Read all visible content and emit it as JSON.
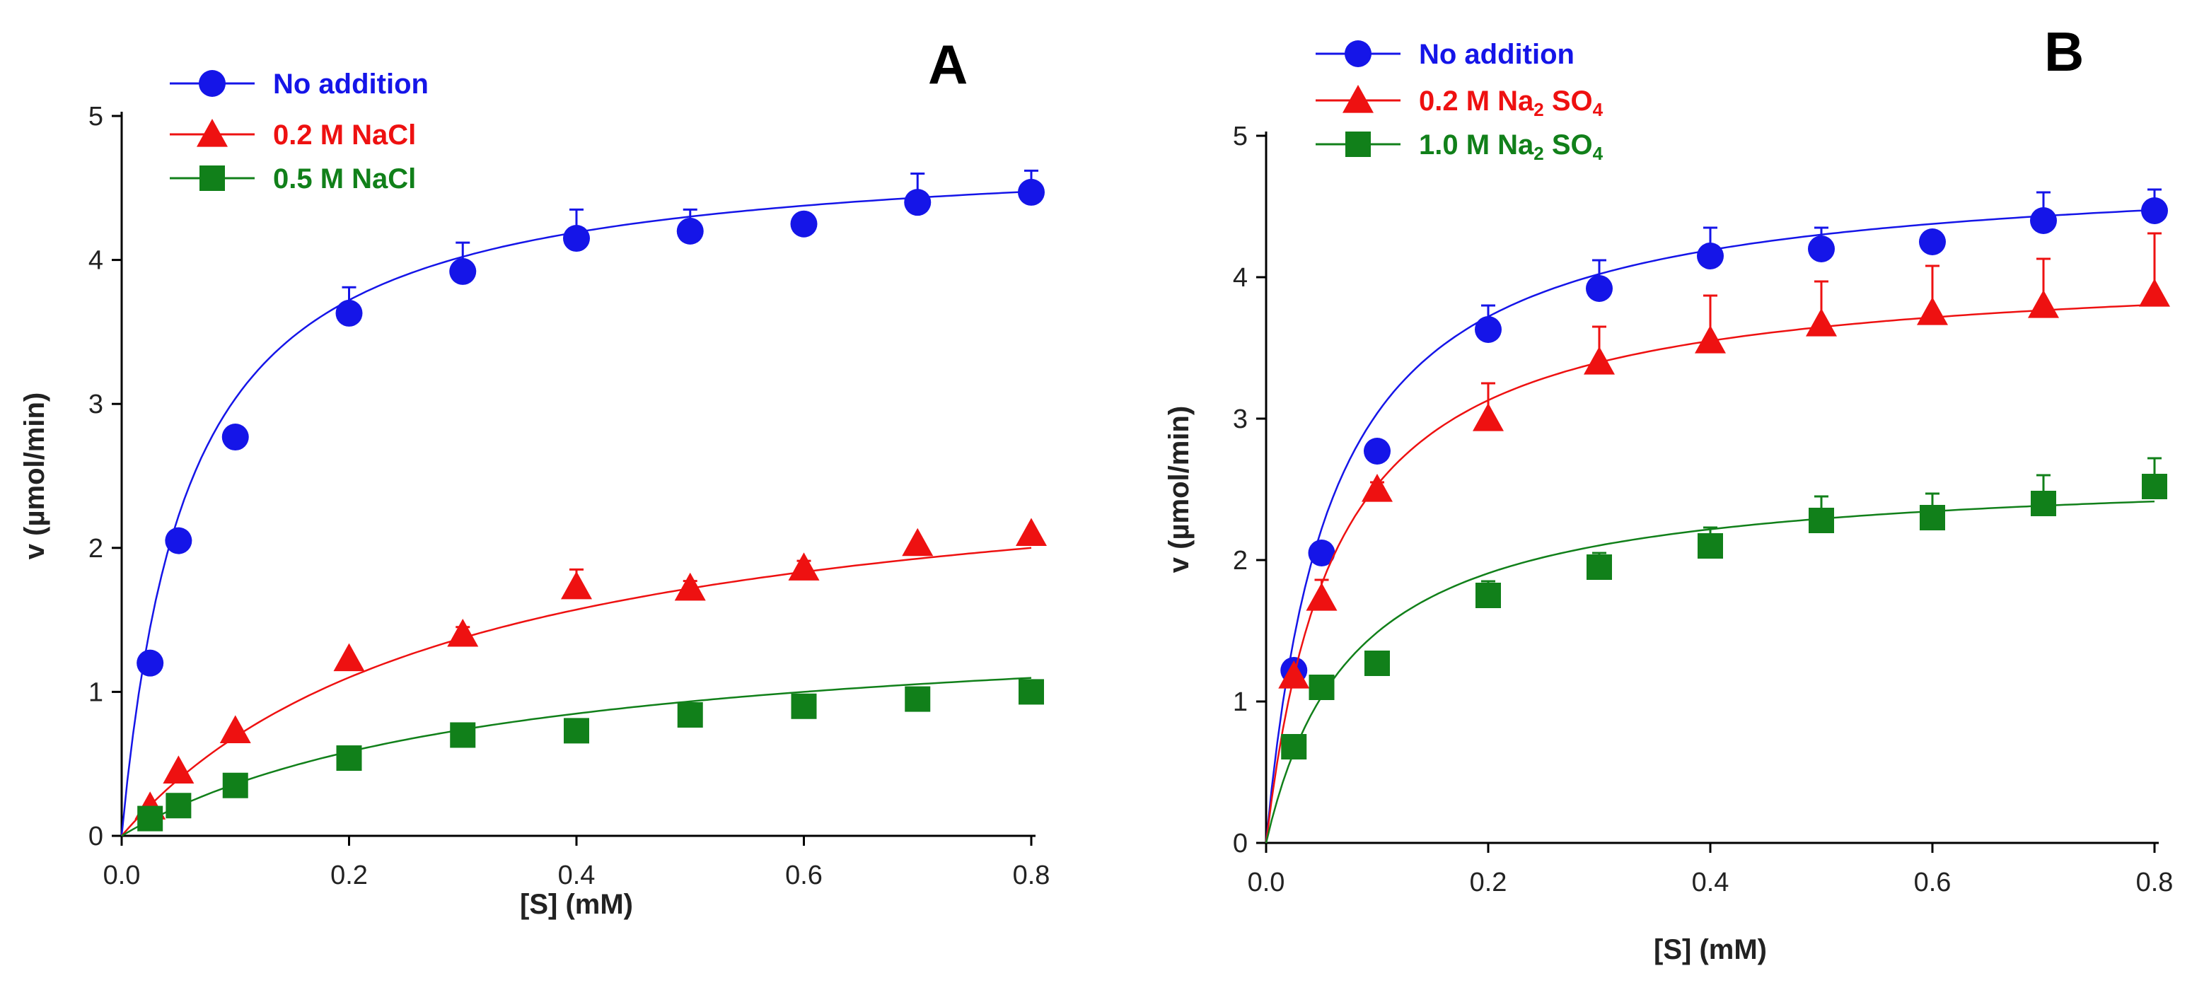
{
  "chart_data": [
    {
      "panel": "A",
      "type": "scatter",
      "xlabel": "[S] (mM)",
      "ylabel": "v (µmol/min)",
      "xlim": [
        0,
        0.8
      ],
      "ylim": [
        0,
        5
      ],
      "xticks": [
        "0.0",
        "0.2",
        "0.4",
        "0.6",
        "0.8"
      ],
      "yticks": [
        "0",
        "1",
        "2",
        "3",
        "4",
        "5"
      ],
      "legend_position": "top-left",
      "series": [
        {
          "name": "No addition",
          "color": "#1515e8",
          "marker": "circle",
          "x": [
            0.025,
            0.05,
            0.1,
            0.2,
            0.3,
            0.4,
            0.5,
            0.6,
            0.7,
            0.8
          ],
          "y": [
            1.2,
            2.05,
            2.77,
            3.63,
            3.92,
            4.15,
            4.2,
            4.25,
            4.4,
            4.47
          ],
          "err": [
            0,
            0,
            0.05,
            0.18,
            0.2,
            0.2,
            0.15,
            0.05,
            0.2,
            0.15
          ],
          "fit": {
            "vmax": 4.8,
            "km": 0.058
          }
        },
        {
          "name": "0.2 M NaCl",
          "color": "#ee1111",
          "marker": "triangle",
          "x": [
            0.025,
            0.05,
            0.1,
            0.2,
            0.3,
            0.4,
            0.5,
            0.6,
            0.7,
            0.8
          ],
          "y": [
            0.2,
            0.45,
            0.73,
            1.23,
            1.4,
            1.73,
            1.72,
            1.86,
            2.03,
            2.1
          ],
          "err": [
            0,
            0,
            0,
            0,
            0.05,
            0.12,
            0.05,
            0.05,
            0,
            0
          ],
          "fit": {
            "vmax": 2.75,
            "km": 0.3
          }
        },
        {
          "name": "0.5 M NaCl",
          "color": "#11801a",
          "marker": "square",
          "x": [
            0.025,
            0.05,
            0.1,
            0.2,
            0.3,
            0.4,
            0.5,
            0.6,
            0.7,
            0.8
          ],
          "y": [
            0.12,
            0.21,
            0.35,
            0.54,
            0.7,
            0.73,
            0.84,
            0.9,
            0.95,
            1.0
          ],
          "err": [
            0,
            0,
            0,
            0.04,
            0.04,
            0.04,
            0.04,
            0.04,
            0,
            0
          ],
          "fit": {
            "vmax": 1.55,
            "km": 0.33
          }
        }
      ]
    },
    {
      "panel": "B",
      "type": "scatter",
      "xlabel": "[S] (mM)",
      "ylabel": "v (µmol/min)",
      "xlim": [
        0,
        0.8
      ],
      "ylim": [
        0,
        5
      ],
      "xticks": [
        "0.0",
        "0.2",
        "0.4",
        "0.6",
        "0.8"
      ],
      "yticks": [
        "0",
        "1",
        "2",
        "3",
        "4",
        "5"
      ],
      "legend_position": "top-left",
      "series": [
        {
          "name": "No addition",
          "color": "#1515e8",
          "marker": "circle",
          "x": [
            0.025,
            0.05,
            0.1,
            0.2,
            0.3,
            0.4,
            0.5,
            0.6,
            0.7,
            0.8
          ],
          "y": [
            1.22,
            2.05,
            2.77,
            3.63,
            3.92,
            4.15,
            4.2,
            4.25,
            4.4,
            4.47
          ],
          "err": [
            0,
            0,
            0,
            0.17,
            0.2,
            0.2,
            0.15,
            0.05,
            0.2,
            0.15
          ],
          "fit": {
            "vmax": 4.8,
            "km": 0.058
          }
        },
        {
          "name": "0.2 M Na",
          "name_sub": "2",
          "name_rest": " SO",
          "name_sub2": "4",
          "color": "#ee1111",
          "marker": "triangle",
          "x": [
            0.025,
            0.05,
            0.1,
            0.2,
            0.3,
            0.4,
            0.5,
            0.6,
            0.7,
            0.8
          ],
          "y": [
            1.18,
            1.73,
            2.5,
            3.0,
            3.4,
            3.55,
            3.67,
            3.75,
            3.8,
            3.88
          ],
          "err": [
            0,
            0.13,
            0.05,
            0.25,
            0.25,
            0.32,
            0.3,
            0.33,
            0.33,
            0.43
          ],
          "fit": {
            "vmax": 4.1,
            "km": 0.062
          }
        },
        {
          "name": "1.0 M Na",
          "name_sub": "2",
          "name_rest": " SO",
          "name_sub2": "4",
          "color": "#11801a",
          "marker": "square",
          "x": [
            0.025,
            0.05,
            0.1,
            0.2,
            0.3,
            0.4,
            0.5,
            0.6,
            0.7,
            0.8
          ],
          "y": [
            0.68,
            1.1,
            1.27,
            1.75,
            1.95,
            2.1,
            2.28,
            2.3,
            2.4,
            2.52
          ],
          "err": [
            0,
            0,
            0,
            0.1,
            0.1,
            0.13,
            0.17,
            0.17,
            0.2,
            0.2
          ],
          "fit": {
            "vmax": 2.65,
            "km": 0.078
          }
        }
      ]
    }
  ]
}
